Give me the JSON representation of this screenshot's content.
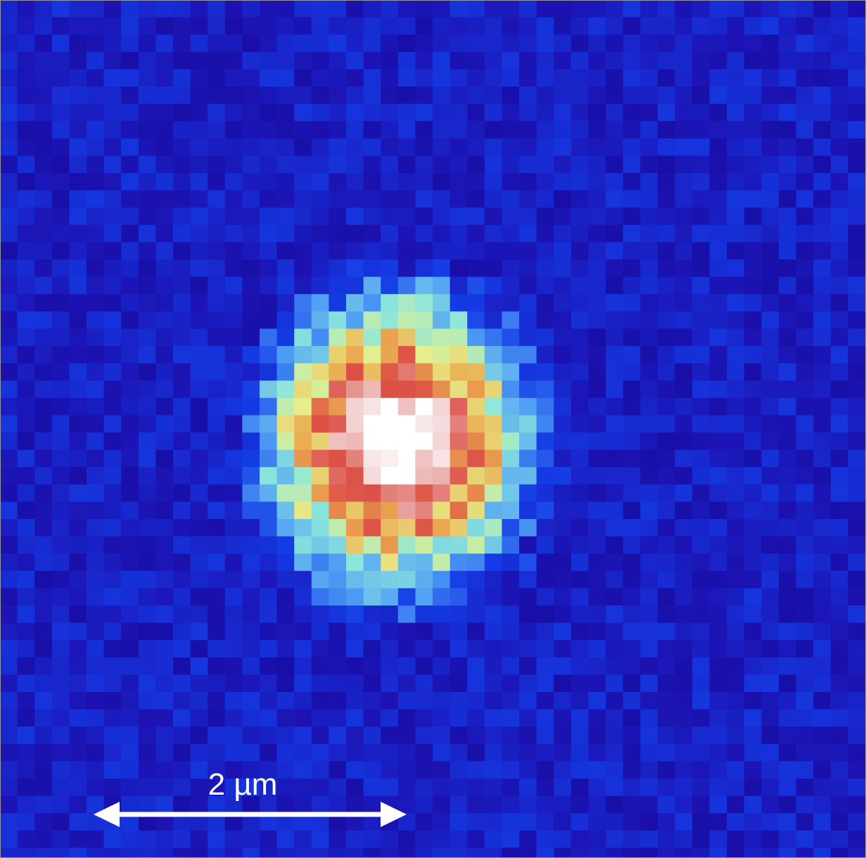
{
  "scale_bar": {
    "label": "2 µm"
  }
}
